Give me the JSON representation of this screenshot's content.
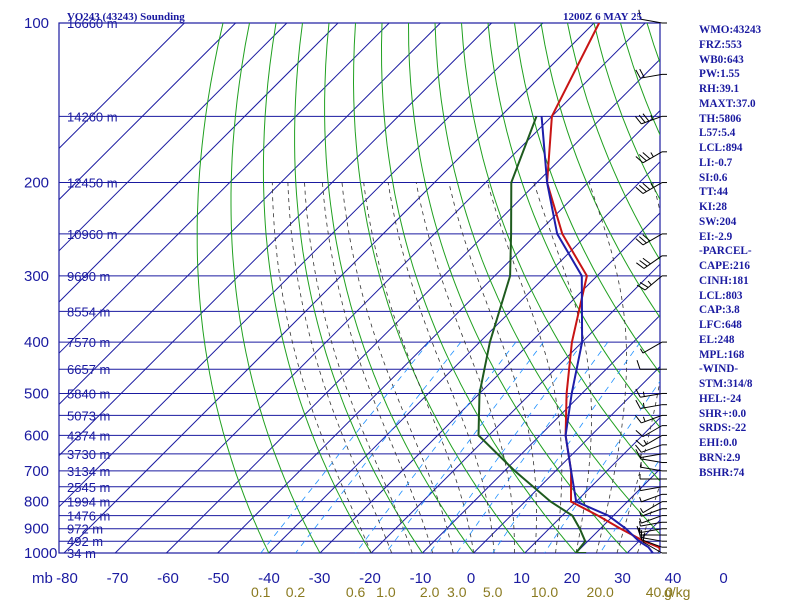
{
  "header": {
    "title": "VO243 (43243) Sounding",
    "time": "1200Z  6 MAY 25"
  },
  "indices": [
    "WMO:43243",
    "FRZ:553",
    "WB0:643",
    "PW:1.55",
    "RH:39.1",
    "MAXT:37.0",
    "TH:5806",
    "L57:5.4",
    "LCL:894",
    "LI:-0.7",
    "SI:0.6",
    "TT:44",
    "KI:28",
    "SW:204",
    "EI:-2.9",
    "-PARCEL-",
    "CAPE:216",
    "CINH:181",
    "LCL:803",
    "CAP:3.8",
    "LFC:648",
    "EL:248",
    "MPL:168",
    "-WIND-",
    "STM:314/8",
    "HEL:-24",
    "SHR+:0.0",
    "SRDS:-22",
    "EHI:0.0",
    "BRN:2.9",
    "BSHR:74"
  ],
  "chart_data": {
    "type": "line",
    "title": "VO243 (43243) Sounding",
    "xlabel": "",
    "ylabel": "mb",
    "x_unit_label": "mb",
    "mixing_unit_label": "g/kg",
    "xlim": [
      -80,
      0
    ],
    "ylim": [
      1000,
      100
    ],
    "y_scale": "log",
    "x_ticks": [
      "-80",
      "-70",
      "-60",
      "-50",
      "-40",
      "-30",
      "-20",
      "-10",
      "0",
      "10",
      "20",
      "30",
      "40",
      "0"
    ],
    "pressure_ticks": [
      100,
      200,
      300,
      400,
      500,
      600,
      700,
      800,
      900,
      1000
    ],
    "height_labels": [
      {
        "p": 100,
        "label": "16660 m"
      },
      {
        "p": 150,
        "label": "14260 m"
      },
      {
        "p": 200,
        "label": "12450 m"
      },
      {
        "p": 250,
        "label": "10960 m"
      },
      {
        "p": 300,
        "label": "9690 m"
      },
      {
        "p": 350,
        "label": "8554 m"
      },
      {
        "p": 400,
        "label": "7570 m"
      },
      {
        "p": 450,
        "label": "6657 m"
      },
      {
        "p": 500,
        "label": "5840 m"
      },
      {
        "p": 550,
        "label": "5073 m"
      },
      {
        "p": 600,
        "label": "4374 m"
      },
      {
        "p": 650,
        "label": "3730 m"
      },
      {
        "p": 700,
        "label": "3134 m"
      },
      {
        "p": 750,
        "label": "2545 m"
      },
      {
        "p": 800,
        "label": "1994 m"
      },
      {
        "p": 850,
        "label": "1476 m"
      },
      {
        "p": 900,
        "label": "972 m"
      },
      {
        "p": 950,
        "label": "492 m"
      },
      {
        "p": 1000,
        "label": "34 m"
      }
    ],
    "mixing_ratio_labels": [
      "0.1",
      "0.2",
      "0.6",
      "1.0",
      "2.0",
      "3.0",
      "5.0",
      "10.0",
      "20.0",
      "40.0"
    ],
    "series": [
      {
        "color": "#c81414",
        "x": [
          37.0,
          35,
          31,
          24,
          17,
          9,
          3,
          -5,
          -13,
          -22,
          -32,
          -45,
          -58,
          -70,
          -79
        ],
        "p": [
          1000,
          975,
          950,
          900,
          850,
          800,
          700,
          600,
          500,
          400,
          300,
          250,
          200,
          150,
          100
        ]
      },
      {
        "color": "#1e1eaa",
        "x": [
          35,
          33,
          30,
          25,
          19,
          10,
          3,
          -5,
          -12,
          -20,
          -33,
          -46,
          -58,
          -72
        ],
        "p": [
          1000,
          975,
          950,
          900,
          850,
          800,
          700,
          600,
          500,
          400,
          300,
          250,
          200,
          150
        ]
      },
      {
        "color": "#1e5a1e",
        "x": [
          22,
          20,
          19.5,
          16,
          12,
          5,
          -8,
          -22,
          -30,
          -38,
          -47,
          -55,
          -65,
          -73
        ],
        "p": [
          1000,
          1000,
          950,
          900,
          850,
          800,
          700,
          600,
          500,
          400,
          300,
          250,
          200,
          150
        ]
      }
    ],
    "wind_barbs": [
      {
        "p": 1000,
        "dir": 300,
        "spd": 10
      },
      {
        "p": 975,
        "dir": 290,
        "spd": 10
      },
      {
        "p": 950,
        "dir": 280,
        "spd": 10
      },
      {
        "p": 925,
        "dir": 270,
        "spd": 10
      },
      {
        "p": 900,
        "dir": 260,
        "spd": 5
      },
      {
        "p": 875,
        "dir": 260,
        "spd": 5
      },
      {
        "p": 850,
        "dir": 250,
        "spd": 5
      },
      {
        "p": 825,
        "dir": 250,
        "spd": 5
      },
      {
        "p": 800,
        "dir": 240,
        "spd": 5
      },
      {
        "p": 775,
        "dir": 250,
        "spd": 5
      },
      {
        "p": 750,
        "dir": 260,
        "spd": 5
      },
      {
        "p": 725,
        "dir": 270,
        "spd": 5
      },
      {
        "p": 700,
        "dir": 280,
        "spd": 5
      },
      {
        "p": 675,
        "dir": 280,
        "spd": 5
      },
      {
        "p": 650,
        "dir": 260,
        "spd": 10
      },
      {
        "p": 625,
        "dir": 250,
        "spd": 10
      },
      {
        "p": 600,
        "dir": 240,
        "spd": 15
      },
      {
        "p": 575,
        "dir": 240,
        "spd": 10
      },
      {
        "p": 550,
        "dir": 250,
        "spd": 15
      },
      {
        "p": 525,
        "dir": 260,
        "spd": 15
      },
      {
        "p": 500,
        "dir": 260,
        "spd": 15
      },
      {
        "p": 450,
        "dir": 270,
        "spd": 10
      },
      {
        "p": 400,
        "dir": 240,
        "spd": 5
      },
      {
        "p": 300,
        "dir": 230,
        "spd": 25
      },
      {
        "p": 275,
        "dir": 235,
        "spd": 30
      },
      {
        "p": 250,
        "dir": 240,
        "spd": 30
      },
      {
        "p": 200,
        "dir": 240,
        "spd": 35
      },
      {
        "p": 175,
        "dir": 240,
        "spd": 35
      },
      {
        "p": 150,
        "dir": 250,
        "spd": 35
      },
      {
        "p": 125,
        "dir": 260,
        "spd": 20
      },
      {
        "p": 100,
        "dir": 280,
        "spd": 10
      }
    ],
    "colors": {
      "grid": "#1a1aa0",
      "isotherm": "#1a1aa0",
      "dry_adiabat": "#20a020",
      "moist_adiabat": "#333333",
      "mixing_ratio": "#1e90ff",
      "temperature": "#c81414",
      "dewpoint": "#1e5a1e",
      "parcel": "#1e1eaa",
      "mixing_label": "#8a7a20",
      "barb": "#000000"
    }
  }
}
